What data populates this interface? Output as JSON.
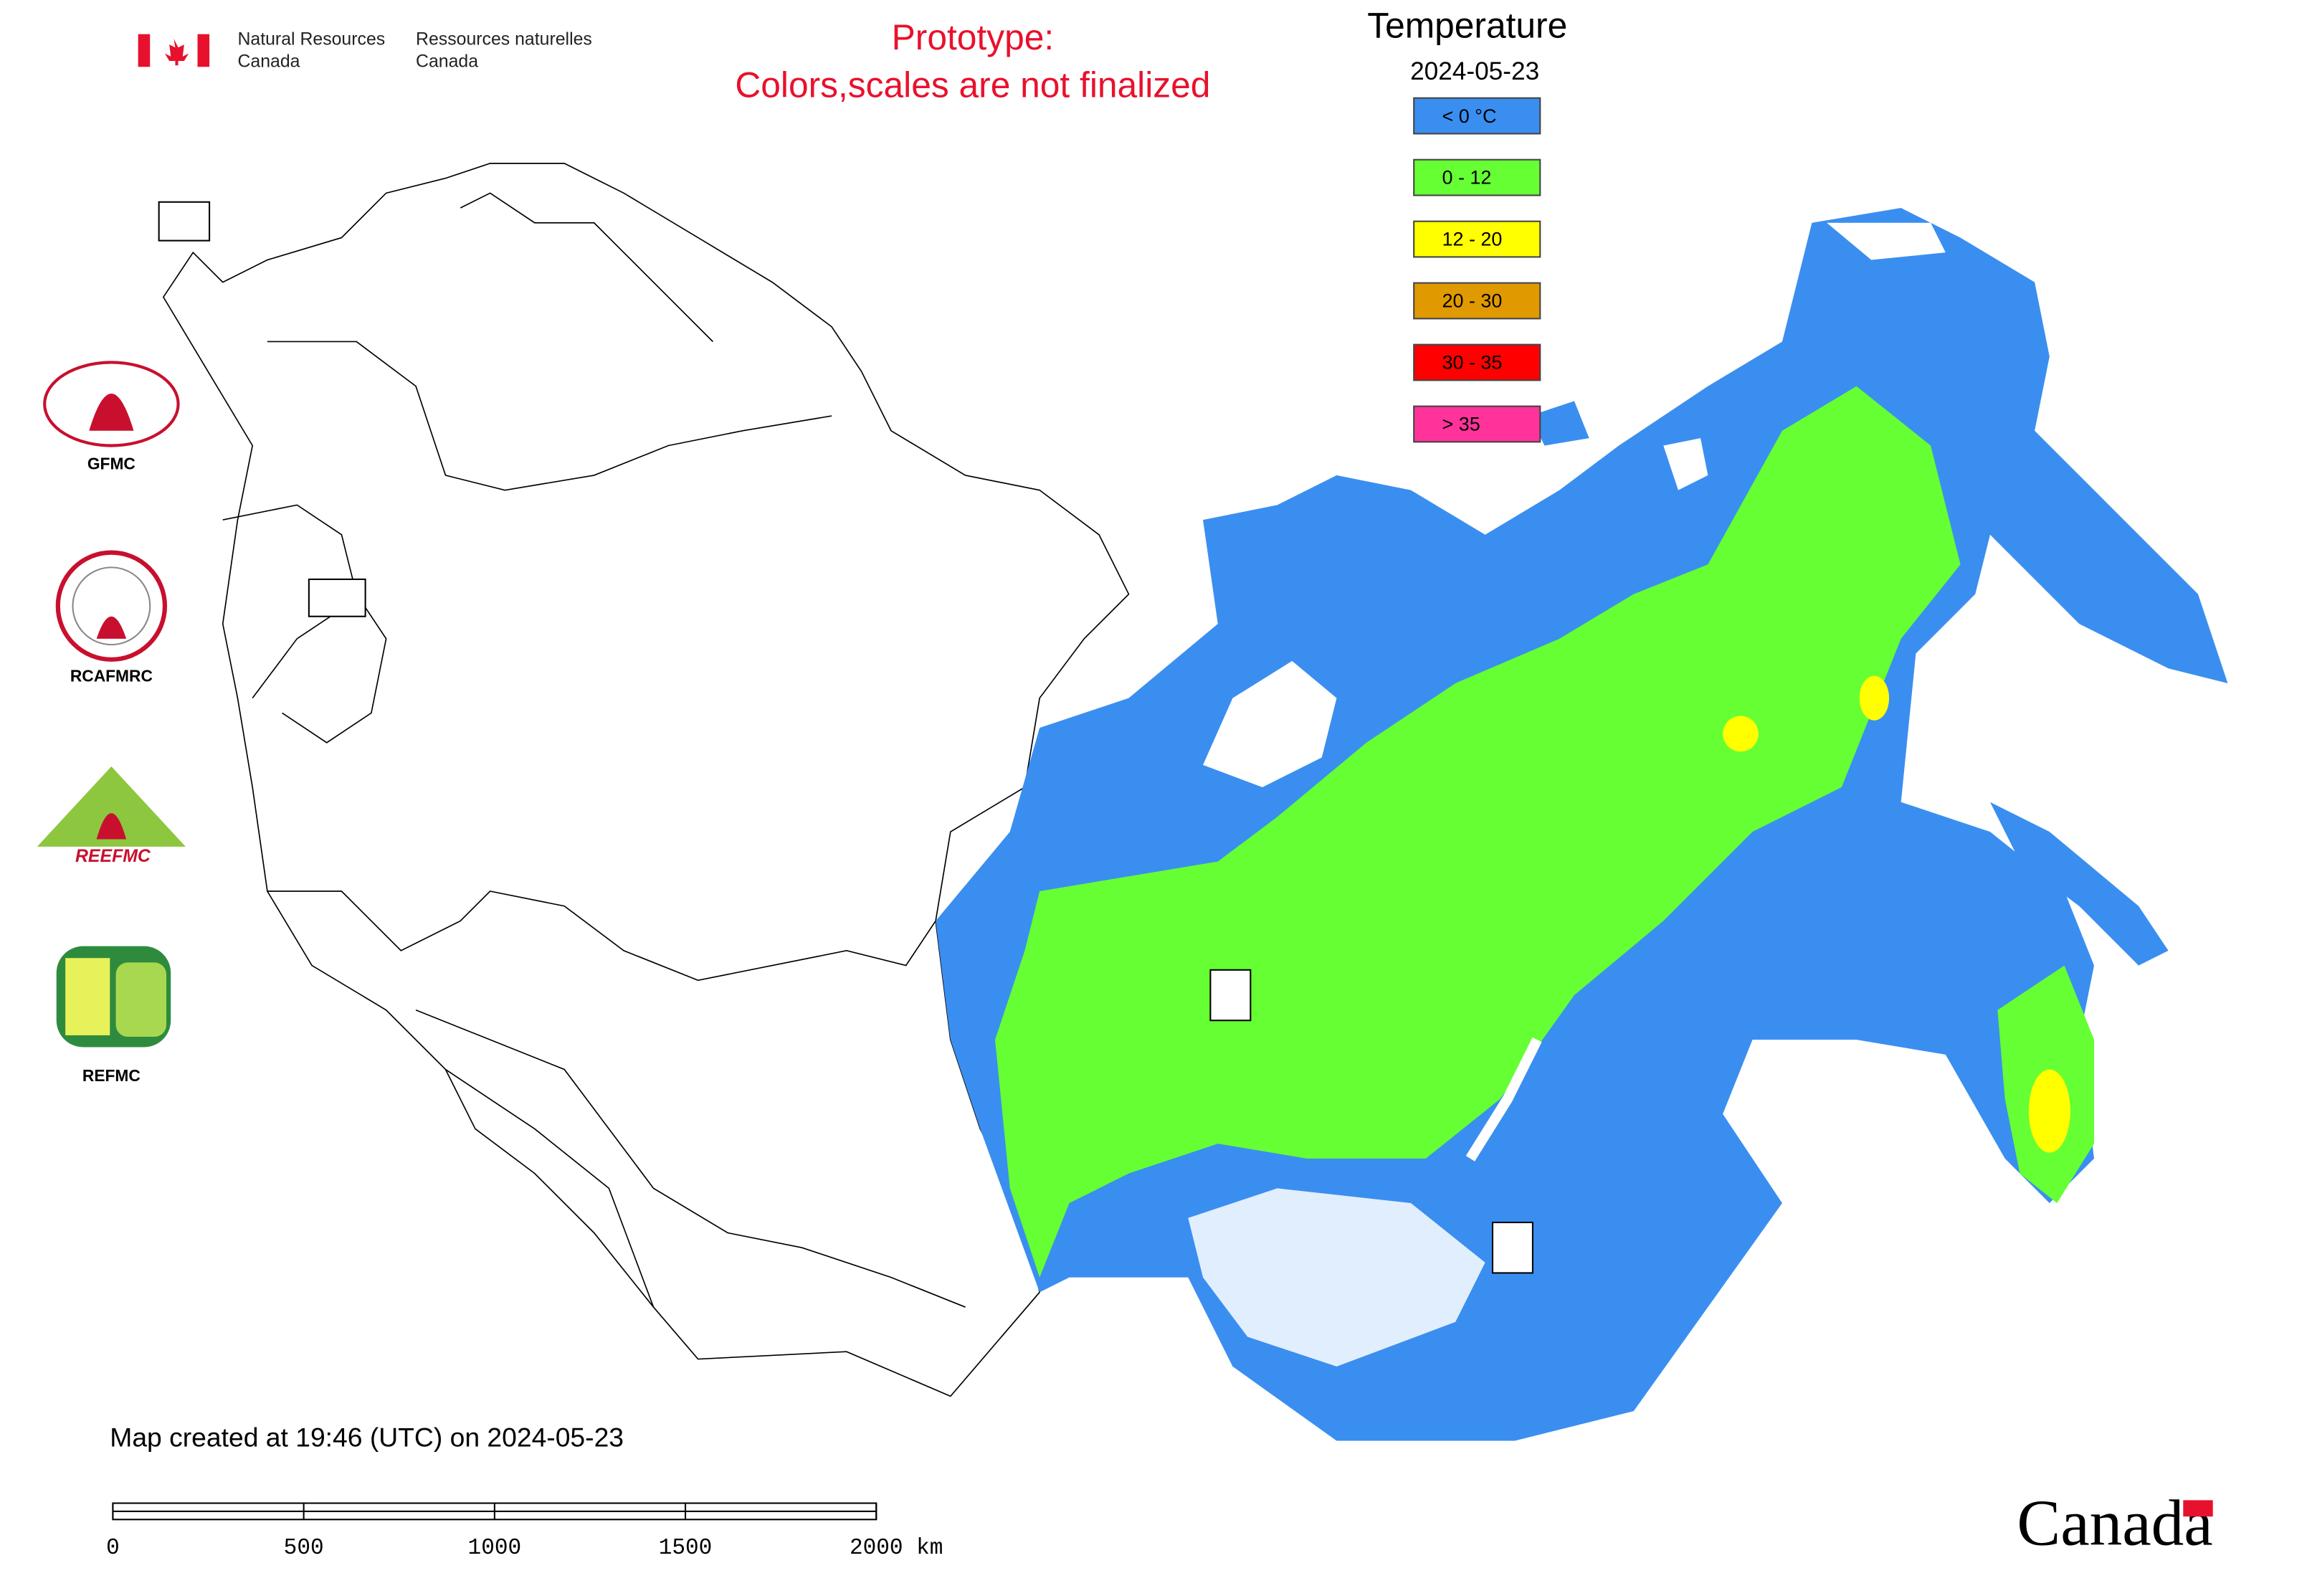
{
  "header": {
    "agency_en_line1": "Natural Resources",
    "agency_en_line2": "Canada",
    "agency_fr_line1": "Ressources naturelles",
    "agency_fr_line2": "Canada",
    "notice_line1": "Prototype:",
    "notice_line2": "Colors,scales are not finalized"
  },
  "legend": {
    "title": "Temperature",
    "date": "2024-05-23",
    "items": [
      {
        "label": "< 0 °C",
        "color": "#3a8ef0"
      },
      {
        "label": "0 - 12",
        "color": "#66ff33"
      },
      {
        "label": "12 - 20",
        "color": "#ffff00"
      },
      {
        "label": "20 - 30",
        "color": "#e09a00"
      },
      {
        "label": "30 - 35",
        "color": "#ff0000"
      },
      {
        "label": "> 35",
        "color": "#ff3399"
      }
    ]
  },
  "logos": {
    "gfmc": "GFMC",
    "rcafmrc": "RCAFMRC",
    "reefmc": "REEFMC",
    "refmc": "REFMC"
  },
  "footer": {
    "created": "Map created at 19:46 (UTC) on 2024-05-23",
    "wordmark": "Canada"
  },
  "scale_bar": {
    "ticks": [
      0,
      500,
      1000,
      1500,
      {
        "value": 2000,
        "label": "2000 km"
      }
    ],
    "range": [
      0,
      2000
    ]
  }
}
